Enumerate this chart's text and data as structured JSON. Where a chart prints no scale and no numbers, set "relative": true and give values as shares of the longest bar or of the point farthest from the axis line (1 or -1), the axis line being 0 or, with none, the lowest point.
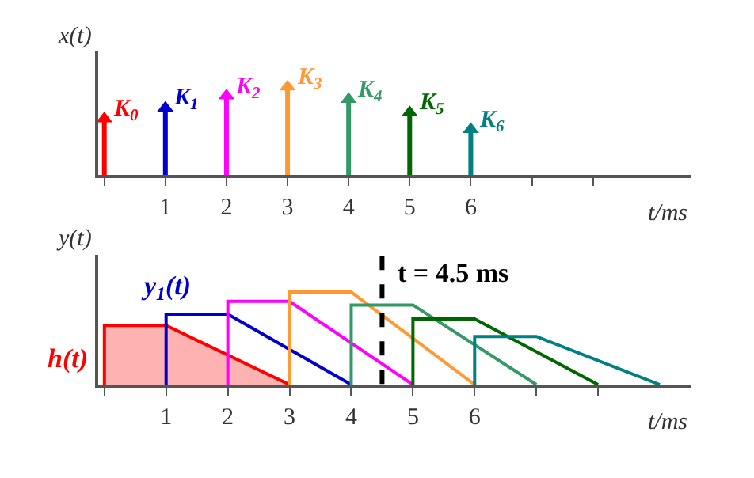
{
  "chart_data": [
    {
      "type": "lollipop",
      "relative": true,
      "ylabel": "x(t)",
      "xlabel": "t/ms",
      "marker": "triangle",
      "legend": false,
      "x": [
        0,
        1,
        2,
        3,
        4,
        5,
        6
      ],
      "values": [
        0.64,
        0.76,
        0.9,
        1,
        0.86,
        0.71,
        0.52
      ],
      "colors": [
        "#ff0000",
        "#0000cc",
        "#ff00ff",
        "#ff9933",
        "#339966",
        "#006600",
        "#008080"
      ],
      "xlim": [
        -0.1,
        9.6
      ],
      "xticks": [
        {
          "value": 0,
          "label": null
        },
        1,
        2,
        3,
        4,
        5,
        6,
        {
          "value": 7,
          "label": null
        },
        {
          "value": 8,
          "label": null
        }
      ],
      "annotations": [
        {
          "text": "K$_{0}$",
          "x": 0,
          "y": 0.64
        },
        {
          "text": "K$_{1}$",
          "x": 1,
          "y": 0.76
        },
        {
          "text": "K$_{2}$",
          "x": 2,
          "y": 0.9
        },
        {
          "text": "K$_{3}$",
          "x": 3,
          "y": 1
        },
        {
          "text": "K$_{4}$",
          "x": 4,
          "y": 0.86
        },
        {
          "text": "K$_{5}$",
          "x": 5,
          "y": 0.71
        },
        {
          "text": "K$_{6}$",
          "x": 6,
          "y": 0.52
        }
      ]
    },
    {
      "type": "line",
      "relative": true,
      "ylabel": "y(t)",
      "xlabel": "t/ms",
      "legend": false,
      "xlim": [
        -0.1,
        9.5
      ],
      "xticks": [
        {
          "value": 0,
          "label": null
        },
        1,
        2,
        3,
        4,
        5,
        6,
        {
          "value": 7,
          "label": null
        },
        {
          "value": 8,
          "label": null
        }
      ],
      "series": [
        {
          "type": "area",
          "name": "h(t)",
          "color": "#ff0000",
          "x": [
            0,
            0,
            1,
            3
          ],
          "values": [
            0,
            0.64,
            0.64,
            0
          ]
        },
        {
          "name": "y$_{1}$(t)",
          "color": "#0000cc",
          "x": [
            1,
            1,
            2,
            4
          ],
          "values": [
            0,
            0.76,
            0.76,
            0
          ]
        },
        {
          "color": "#ff00ff",
          "x": [
            2,
            2,
            3,
            5
          ],
          "values": [
            0,
            0.9,
            0.9,
            0
          ]
        },
        {
          "color": "#ff9933",
          "x": [
            3,
            3,
            4,
            6
          ],
          "values": [
            0,
            1,
            1,
            0
          ]
        },
        {
          "color": "#339966",
          "x": [
            4,
            4,
            5,
            7
          ],
          "values": [
            0,
            0.86,
            0.86,
            0
          ]
        },
        {
          "color": "#006600",
          "x": [
            5,
            5,
            6,
            8
          ],
          "values": [
            0,
            0.71,
            0.71,
            0
          ]
        },
        {
          "color": "#008080",
          "x": [
            6,
            6,
            7,
            9
          ],
          "values": [
            0,
            0.52,
            0.52,
            0
          ]
        }
      ],
      "ref_lines": [
        {
          "axis": "x",
          "value": 4.5,
          "label": "t = 4.5 ms",
          "color": "#000000",
          "line_style": "dashed"
        }
      ]
    }
  ]
}
